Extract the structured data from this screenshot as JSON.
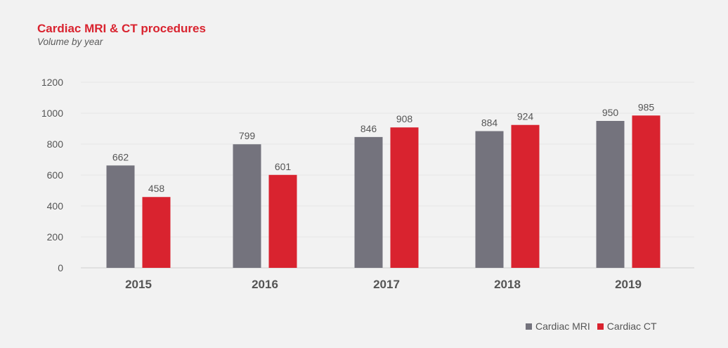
{
  "header": {
    "title": "Cardiac MRI & CT procedures",
    "subtitle": "Volume by year"
  },
  "legend": {
    "items": [
      {
        "label": "Cardiac MRI",
        "color": "#74737d"
      },
      {
        "label": "Cardiac CT",
        "color": "#d9232f"
      }
    ]
  },
  "chart_data": {
    "type": "bar",
    "title": "Cardiac MRI & CT procedures",
    "subtitle": "Volume by year",
    "categories": [
      "2015",
      "2016",
      "2017",
      "2018",
      "2019"
    ],
    "series": [
      {
        "name": "Cardiac MRI",
        "color": "#74737d",
        "values": [
          662,
          799,
          846,
          884,
          950
        ]
      },
      {
        "name": "Cardiac CT",
        "color": "#d9232f",
        "values": [
          458,
          601,
          908,
          924,
          985
        ]
      }
    ],
    "ylim": [
      0,
      1200
    ],
    "yticks": [
      0,
      200,
      400,
      600,
      800,
      1000,
      1200
    ],
    "grid": true,
    "legend_position": "bottom-right"
  }
}
